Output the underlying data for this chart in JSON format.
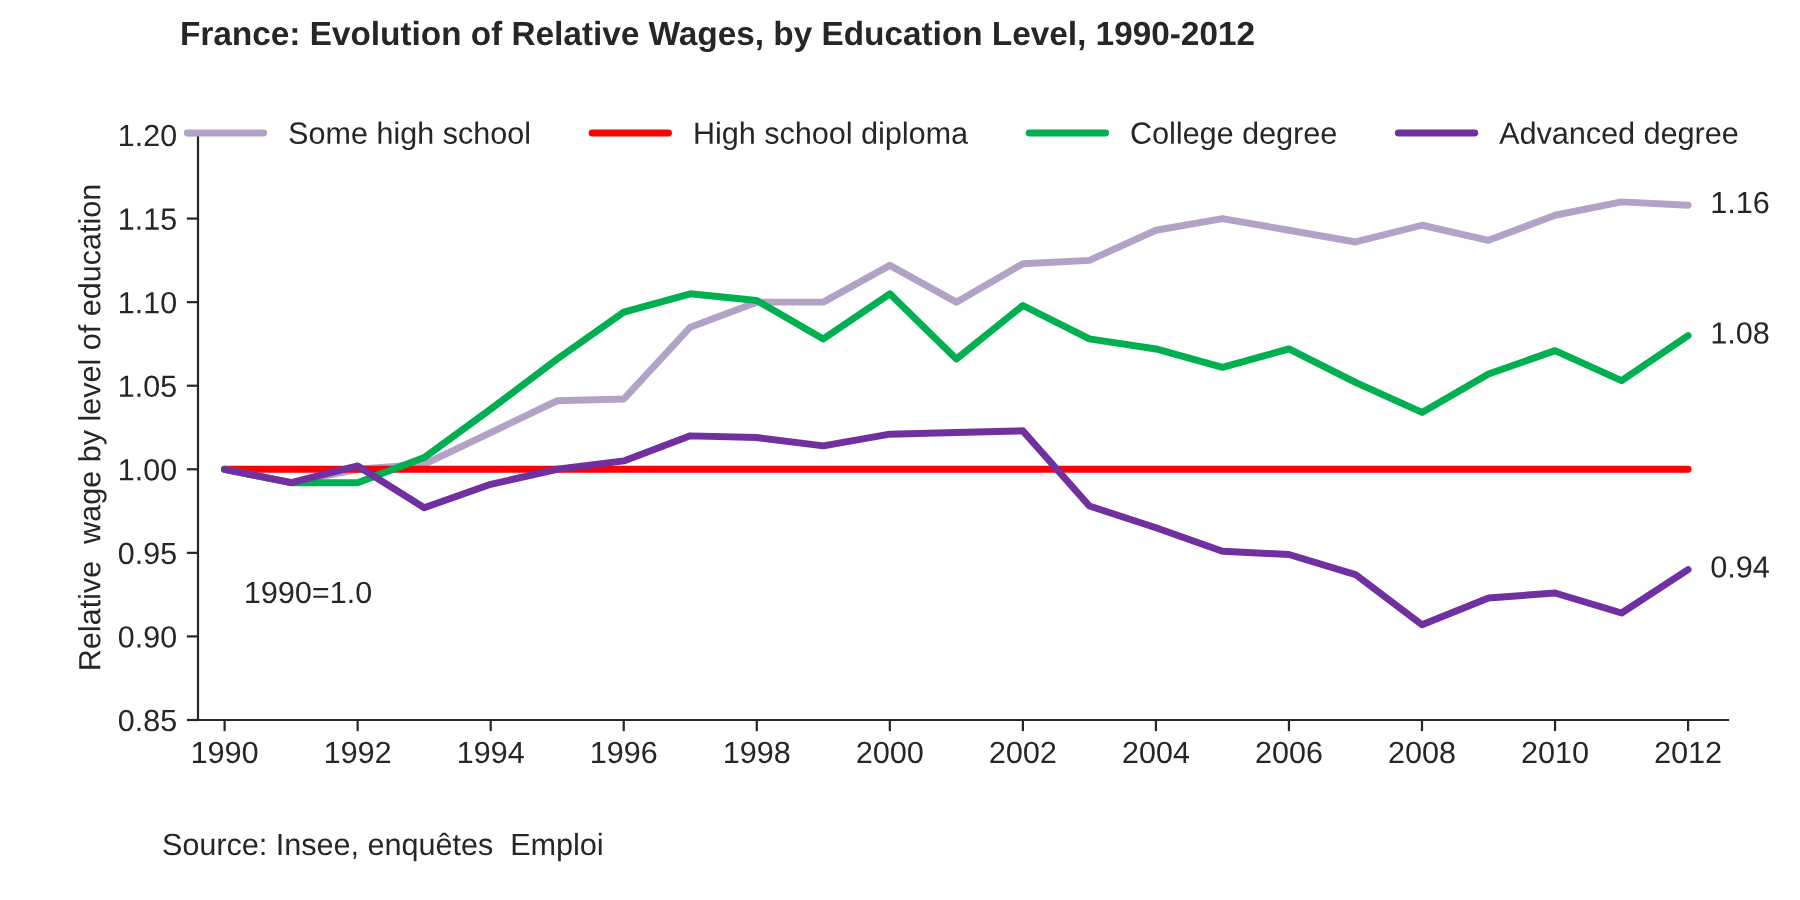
{
  "chart_data": {
    "type": "line",
    "title": "France: Evolution of Relative Wages, by Education Level, 1990-2012",
    "ylabel": "Relative  wage by level of education",
    "x": [
      1990,
      1991,
      1992,
      1993,
      1994,
      1995,
      1996,
      1997,
      1998,
      1999,
      2000,
      2001,
      2002,
      2003,
      2004,
      2005,
      2006,
      2007,
      2008,
      2009,
      2010,
      2011,
      2012
    ],
    "series": [
      {
        "name": "Some high school",
        "color": "#b3a2c7",
        "values": [
          1.0,
          0.992,
          1.0,
          1.003,
          1.022,
          1.041,
          1.042,
          1.085,
          1.1,
          1.1,
          1.122,
          1.1,
          1.123,
          1.125,
          1.143,
          1.15,
          1.143,
          1.136,
          1.146,
          1.137,
          1.152,
          1.16,
          1.158
        ],
        "value_labels": [
          null,
          null,
          null,
          null,
          null,
          null,
          null,
          null,
          null,
          null,
          null,
          null,
          null,
          null,
          null,
          null,
          null,
          null,
          null,
          null,
          null,
          null,
          "1.16"
        ]
      },
      {
        "name": "High school diploma",
        "color": "#ff0000",
        "values": [
          1.0,
          1.0,
          1.0,
          1.0,
          1.0,
          1.0,
          1.0,
          1.0,
          1.0,
          1.0,
          1.0,
          1.0,
          1.0,
          1.0,
          1.0,
          1.0,
          1.0,
          1.0,
          1.0,
          1.0,
          1.0,
          1.0,
          1.0
        ]
      },
      {
        "name": "College degree",
        "color": "#00b050",
        "values": [
          1.0,
          0.992,
          0.992,
          1.007,
          1.036,
          1.066,
          1.094,
          1.105,
          1.101,
          1.078,
          1.105,
          1.066,
          1.098,
          1.078,
          1.072,
          1.061,
          1.072,
          1.052,
          1.034,
          1.057,
          1.071,
          1.053,
          1.08
        ],
        "value_labels": [
          null,
          null,
          null,
          null,
          null,
          null,
          null,
          null,
          null,
          null,
          null,
          null,
          null,
          null,
          null,
          null,
          null,
          null,
          null,
          null,
          null,
          null,
          "1.08"
        ]
      },
      {
        "name": "Advanced degree",
        "color": "#7030a0",
        "values": [
          1.0,
          0.992,
          1.002,
          0.977,
          0.991,
          1.0,
          1.005,
          1.02,
          1.019,
          1.014,
          1.021,
          1.022,
          1.023,
          0.978,
          0.965,
          0.951,
          0.949,
          0.937,
          0.907,
          0.923,
          0.926,
          0.914,
          0.94
        ],
        "value_labels": [
          null,
          null,
          null,
          null,
          null,
          null,
          null,
          null,
          null,
          null,
          null,
          null,
          null,
          null,
          null,
          null,
          null,
          null,
          null,
          null,
          null,
          null,
          "0.94"
        ]
      }
    ],
    "xlim": [
      1989.6,
      2012.6
    ],
    "xticks": [
      1990,
      1992,
      1994,
      1996,
      1998,
      2000,
      2002,
      2004,
      2006,
      2008,
      2010,
      2012
    ],
    "ylim": [
      0.85,
      1.2
    ],
    "yticks": [
      {
        "value": 0.85,
        "label": "0.85"
      },
      {
        "value": 0.9,
        "label": "0.90"
      },
      {
        "value": 0.95,
        "label": "0.95"
      },
      {
        "value": 1.0,
        "label": "1.00"
      },
      {
        "value": 1.05,
        "label": "1.05"
      },
      {
        "value": 1.1,
        "label": "1.10"
      },
      {
        "value": 1.15,
        "label": "1.15"
      },
      {
        "value": 1.2,
        "label": "1.20"
      }
    ],
    "annotations": [
      "1990=1.0",
      "Source: Insee, enquêtes  Emploi"
    ],
    "grid": false,
    "legend": "top",
    "marker": "none",
    "line_style": "solid"
  }
}
